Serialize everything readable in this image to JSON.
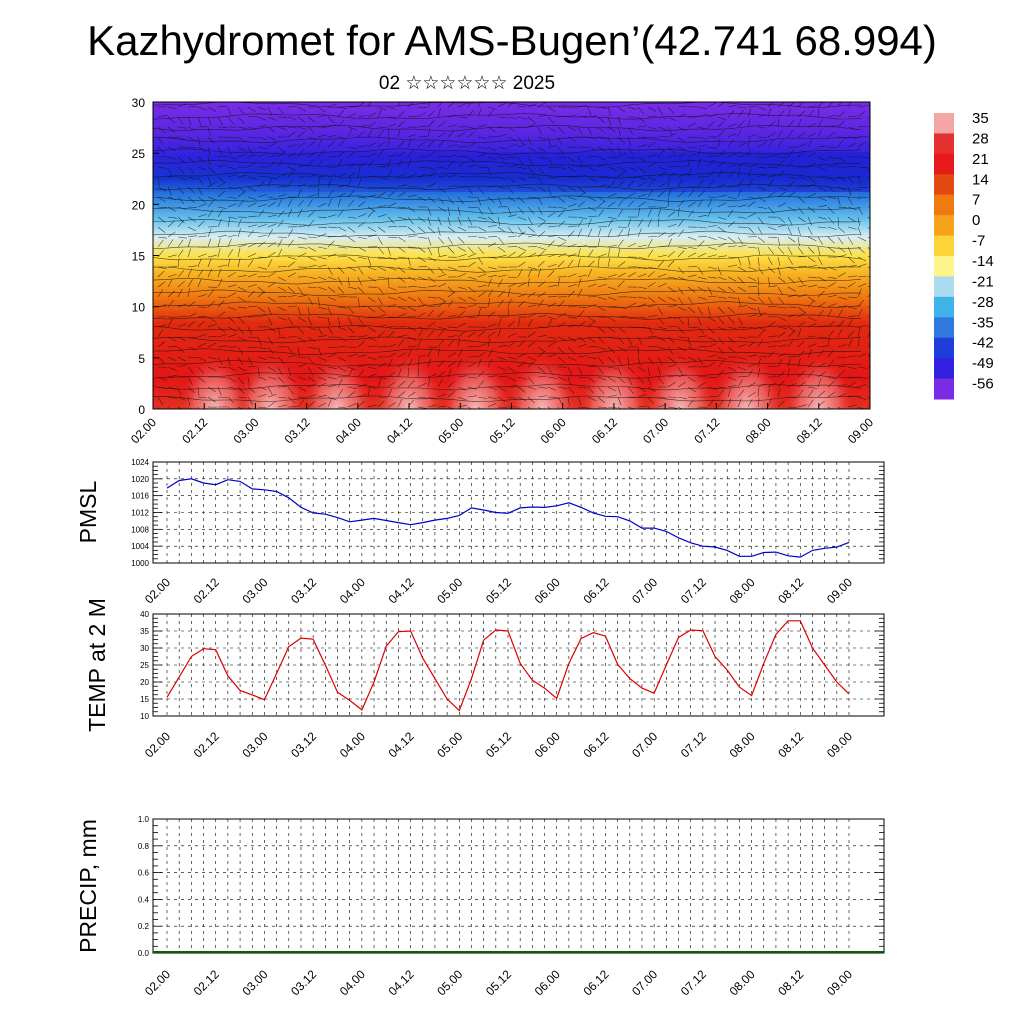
{
  "title": "Kazhydromet for AMS-Bugen’(42.741 68.994)",
  "subtitle": "02 ☆☆☆☆☆☆ 2025",
  "chart_data": [
    {
      "type": "heatmap",
      "name": "vertical-cross-section",
      "time_labels": [
        "02.00",
        "02.12",
        "03.00",
        "03.12",
        "04.00",
        "04.12",
        "05.00",
        "05.12",
        "06.00",
        "06.12",
        "07.00",
        "07.12",
        "08.00",
        "08.12",
        "09.00"
      ],
      "y_ticks": [
        "0",
        "5",
        "10",
        "15",
        "20",
        "25",
        "30"
      ],
      "ylim": [
        0,
        30
      ],
      "colorbar_labels": [
        "35",
        "28",
        "21",
        "14",
        "7",
        "0",
        "-7",
        "-14",
        "-21",
        "-28",
        "-35",
        "-42",
        "-49",
        "-56"
      ],
      "colorbar_colors": [
        "#f4a6a6",
        "#e53030",
        "#e61a1a",
        "#e24a12",
        "#f07a10",
        "#f6a319",
        "#fbd43a",
        "#fdf48c",
        "#a9dcef",
        "#3fb2ea",
        "#2f78df",
        "#1e3ed7",
        "#3320e0",
        "#7a2be4"
      ],
      "contour_field": [
        {
          "height": 0,
          "value": 30
        },
        {
          "height": 4,
          "value": 24
        },
        {
          "height": 9,
          "value": 14
        },
        {
          "height": 12,
          "value": 4
        },
        {
          "height": 16,
          "value": -10
        },
        {
          "height": 19,
          "value": -22
        },
        {
          "height": 22,
          "value": -45
        },
        {
          "height": 25,
          "value": -52
        },
        {
          "height": 28,
          "value": -58
        },
        {
          "height": 30,
          "value": -60
        }
      ],
      "warm_bubbles_time_index": [
        1.2,
        2.3,
        3.6,
        5.0,
        6.3,
        7.6,
        9.0,
        10.3,
        11.6,
        13.0
      ]
    },
    {
      "type": "line",
      "name": "pmsl",
      "ylabel": "PMSL",
      "ylim": [
        1000,
        1024
      ],
      "y_ticks": [
        "1000",
        "1004",
        "1008",
        "1012",
        "1016",
        "1020",
        "1024"
      ],
      "time_labels": [
        "02.00",
        "02.12",
        "03.00",
        "03.12",
        "04.00",
        "04.12",
        "05.00",
        "05.12",
        "06.00",
        "06.12",
        "07.00",
        "07.12",
        "08.00",
        "08.12",
        "09.00"
      ],
      "color": "#0000cc",
      "values": [
        1017.8,
        1019.6,
        1020.0,
        1019.0,
        1018.6,
        1019.8,
        1019.4,
        1017.6,
        1017.4,
        1017.0,
        1015.5,
        1013.2,
        1011.9,
        1011.6,
        1010.8,
        1009.8,
        1010.2,
        1010.6,
        1010.1,
        1009.6,
        1009.1,
        1009.6,
        1010.2,
        1010.6,
        1011.3,
        1013.1,
        1012.6,
        1012.0,
        1011.8,
        1013.1,
        1013.3,
        1013.2,
        1013.6,
        1014.3,
        1013.2,
        1011.9,
        1011.1,
        1011.0,
        1010.0,
        1008.3,
        1008.3,
        1007.5,
        1006.0,
        1004.8,
        1004.0,
        1003.8,
        1003.0,
        1001.6,
        1001.6,
        1002.5,
        1002.6,
        1001.7,
        1001.4,
        1003.0,
        1003.5,
        1003.8,
        1004.9
      ]
    },
    {
      "type": "line",
      "name": "temperature-2m",
      "ylabel": "TEMP at 2 M",
      "ylim": [
        10,
        40
      ],
      "y_ticks": [
        "10",
        "15",
        "20",
        "25",
        "30",
        "35",
        "40"
      ],
      "time_labels": [
        "02.00",
        "02.12",
        "03.00",
        "03.12",
        "04.00",
        "04.12",
        "05.00",
        "05.12",
        "06.00",
        "06.12",
        "07.00",
        "07.12",
        "08.00",
        "08.12",
        "09.00"
      ],
      "color": "#dd0000",
      "values": [
        15.5,
        21.5,
        27.5,
        29.8,
        29.5,
        21.8,
        17.5,
        16.2,
        14.8,
        22.5,
        30.4,
        32.9,
        32.6,
        25.0,
        17.0,
        14.6,
        11.8,
        20.0,
        30.5,
        34.8,
        35.0,
        27.0,
        21.0,
        15.0,
        11.6,
        21.0,
        32.3,
        35.3,
        35.0,
        25.5,
        20.5,
        18.2,
        15.2,
        25.5,
        32.8,
        34.5,
        33.5,
        25.2,
        21.0,
        18.2,
        16.7,
        25.0,
        33.1,
        35.3,
        35.1,
        27.5,
        23.5,
        18.5,
        16.0,
        25.5,
        34.0,
        38.0,
        38.0,
        30.0,
        25.0,
        20.0,
        16.5
      ]
    },
    {
      "type": "bar",
      "name": "precipitation",
      "ylabel": "PRECIP, mm",
      "ylim": [
        0,
        1
      ],
      "y_ticks": [
        "0.0",
        "0.2",
        "0.4",
        "0.6",
        "0.8",
        "1.0"
      ],
      "time_labels": [
        "02.00",
        "02.12",
        "03.00",
        "03.12",
        "04.00",
        "04.12",
        "05.00",
        "05.12",
        "06.00",
        "06.12",
        "07.00",
        "07.12",
        "08.00",
        "08.12",
        "09.00"
      ],
      "values": [
        0,
        0,
        0,
        0,
        0,
        0,
        0,
        0,
        0,
        0,
        0,
        0,
        0,
        0,
        0,
        0,
        0,
        0,
        0,
        0,
        0,
        0,
        0,
        0,
        0,
        0,
        0,
        0
      ]
    }
  ]
}
